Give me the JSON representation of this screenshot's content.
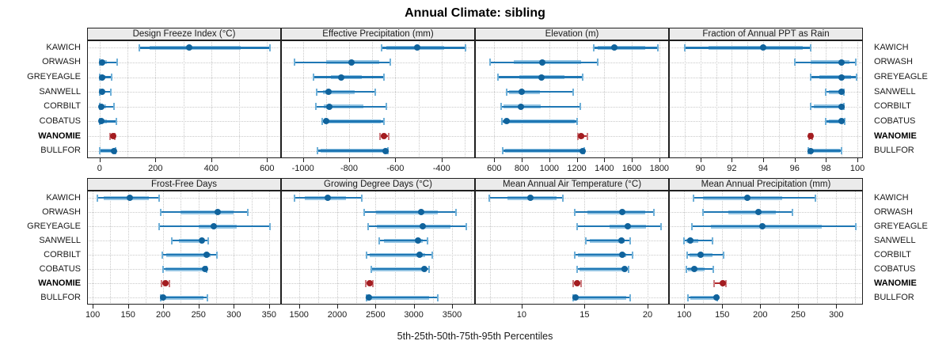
{
  "chart_data": {
    "type": "trellis-interval-dotplot",
    "title": "Annual Climate: sibling",
    "caption": "5th-25th-50th-75th-95th Percentiles",
    "percentiles": [
      5,
      25,
      50,
      75,
      95
    ],
    "sites": [
      "KAWICH",
      "ORWASH",
      "GREYEAGLE",
      "SANWELL",
      "CORBILT",
      "COBATUS",
      "WANOMIE",
      "BULLFOR"
    ],
    "highlight_site": "WANOMIE",
    "legend_position": "none",
    "grid_style": "dotted",
    "colors": {
      "line": "#1f77b4",
      "band": "#93c4e3",
      "cap": "#6fb0d8",
      "dot": "#10639c",
      "highlight_line": "#b2282c",
      "highlight_band": "#e0a0a2",
      "highlight_cap": "#cc7a7e",
      "highlight_dot": "#a31c20",
      "grid": "#c9c9c9",
      "header_bg": "#ebebeb",
      "frame": "#1f1f1f"
    },
    "panels": [
      {
        "label": "Design Freeze Index (°C)",
        "grid_row": 0,
        "grid_col": 0,
        "xlim": [
          -45,
          650
        ],
        "tick_values": [
          0,
          200,
          400,
          600
        ],
        "gridline_values": [
          0,
          100,
          200,
          300,
          400,
          500,
          600
        ],
        "series": [
          [
            143,
            180,
            320,
            505,
            610
          ],
          [
            0,
            3,
            9,
            26,
            63
          ],
          [
            0,
            2,
            9,
            20,
            42
          ],
          [
            0,
            2,
            8,
            15,
            40
          ],
          [
            0,
            2,
            6,
            22,
            52
          ],
          [
            0,
            2,
            6,
            25,
            60
          ],
          [
            38,
            44,
            48,
            52,
            55
          ],
          [
            0,
            3,
            52,
            54,
            57
          ]
        ]
      },
      {
        "label": "Effective Precipitation (mm)",
        "grid_row": 0,
        "grid_col": 1,
        "xlim": [
          -1095,
          -255
        ],
        "tick_values": [
          -1000,
          -800,
          -600,
          -400
        ],
        "gridline_values": [
          -1000,
          -900,
          -800,
          -700,
          -600,
          -500,
          -400,
          -300
        ],
        "series": [
          [
            -660,
            -640,
            -507,
            -390,
            -295
          ],
          [
            -1038,
            -900,
            -789,
            -670,
            -622
          ],
          [
            -953,
            -880,
            -833,
            -745,
            -648
          ],
          [
            -941,
            -913,
            -888,
            -777,
            -687
          ],
          [
            -943,
            -910,
            -886,
            -740,
            -638
          ],
          [
            -918,
            -906,
            -901,
            -663,
            -651
          ],
          [
            -666,
            -656,
            -648,
            -641,
            -630
          ],
          [
            -936,
            -925,
            -643,
            -639,
            -633
          ]
        ]
      },
      {
        "label": "Elevation (m)",
        "grid_row": 0,
        "grid_col": 2,
        "xlim": [
          460,
          1870
        ],
        "tick_values": [
          600,
          800,
          1000,
          1200,
          1400,
          1600,
          1800
        ],
        "gridline_values": [
          600,
          800,
          1000,
          1200,
          1400,
          1600,
          1800
        ],
        "series": [
          [
            1325,
            1350,
            1475,
            1695,
            1790
          ],
          [
            570,
            740,
            950,
            1230,
            1350
          ],
          [
            625,
            780,
            945,
            1110,
            1245
          ],
          [
            690,
            705,
            800,
            930,
            1175
          ],
          [
            650,
            668,
            795,
            940,
            1225
          ],
          [
            655,
            668,
            690,
            1185,
            1205
          ],
          [
            1208,
            1222,
            1233,
            1252,
            1276
          ],
          [
            663,
            676,
            1240,
            1248,
            1256
          ]
        ]
      },
      {
        "label": "Fraction of Annual PPT as Rain",
        "grid_row": 0,
        "grid_col": 3,
        "xlim": [
          88,
          100.35
        ],
        "tick_values": [
          90,
          92,
          94,
          96,
          98,
          100
        ],
        "gridline_values": [
          89,
          90,
          91,
          92,
          93,
          94,
          95,
          96,
          97,
          98,
          99,
          100
        ],
        "series": [
          [
            89,
            90.5,
            94,
            96.5,
            97
          ],
          [
            96,
            97,
            99,
            99.5,
            99.9
          ],
          [
            97,
            97.6,
            99,
            99.6,
            99.95
          ],
          [
            98,
            98.2,
            99,
            99.1,
            99.15
          ],
          [
            97,
            97.2,
            99,
            99.05,
            99.15
          ],
          [
            98,
            98.2,
            99,
            99.1,
            99.2
          ],
          [
            96.9,
            96.95,
            97,
            97.05,
            97.1
          ],
          [
            96.85,
            96.9,
            97,
            98.9,
            99
          ]
        ]
      },
      {
        "label": "Frost-Free Days",
        "grid_row": 1,
        "grid_col": 0,
        "xlim": [
          92,
          367
        ],
        "tick_values": [
          100,
          150,
          200,
          250,
          300,
          350
        ],
        "gridline_values": [
          100,
          125,
          150,
          175,
          200,
          225,
          250,
          275,
          300,
          325,
          350
        ],
        "series": [
          [
            107,
            116,
            153,
            180,
            194
          ],
          [
            196,
            224,
            277,
            300,
            320
          ],
          [
            194,
            250,
            272,
            304,
            351
          ],
          [
            212,
            222,
            255,
            258,
            264
          ],
          [
            199,
            204,
            261,
            267,
            276
          ],
          [
            200,
            203,
            259,
            260,
            262
          ],
          [
            197,
            200,
            203,
            206,
            209
          ],
          [
            196,
            198,
            200,
            257,
            263
          ]
        ]
      },
      {
        "label": "Growing Degree Days (°C)",
        "grid_row": 1,
        "grid_col": 1,
        "xlim": [
          1265,
          3800
        ],
        "tick_values": [
          1500,
          2000,
          2500,
          3000,
          3500
        ],
        "gridline_values": [
          1500,
          1750,
          2000,
          2250,
          2500,
          2750,
          3000,
          3250,
          3500,
          3750
        ],
        "series": [
          [
            1440,
            1580,
            1875,
            2110,
            2320
          ],
          [
            2355,
            2510,
            3100,
            3310,
            3555
          ],
          [
            2405,
            2520,
            3120,
            3480,
            3690
          ],
          [
            2545,
            2610,
            3050,
            3120,
            3180
          ],
          [
            2380,
            2420,
            3075,
            3150,
            3245
          ],
          [
            2440,
            2460,
            3140,
            3165,
            3195
          ],
          [
            2370,
            2400,
            2420,
            2445,
            2465
          ],
          [
            2385,
            2395,
            2410,
            3200,
            3310
          ]
        ]
      },
      {
        "label": "Mean Annual Air Temperature (°C)",
        "grid_row": 1,
        "grid_col": 2,
        "xlim": [
          6.3,
          21.7
        ],
        "tick_values": [
          10,
          15,
          20
        ],
        "gridline_values": [
          7.5,
          10,
          12.5,
          15,
          17.5,
          20
        ],
        "series": [
          [
            7.4,
            8.9,
            10.7,
            12.8,
            13.3
          ],
          [
            14.2,
            15.2,
            18,
            19.8,
            20.5
          ],
          [
            14.4,
            17,
            18.4,
            19.9,
            21.1
          ],
          [
            15.1,
            15.4,
            17.9,
            18.2,
            18.6
          ],
          [
            14.2,
            14.5,
            18,
            18.3,
            18.8
          ],
          [
            14.4,
            14.6,
            18.2,
            18.3,
            18.5
          ],
          [
            14.1,
            14.3,
            14.4,
            14.5,
            14.7
          ],
          [
            14.1,
            14.2,
            14.3,
            18.3,
            18.6
          ]
        ]
      },
      {
        "label": "Mean Annual Precipitation (mm)",
        "grid_row": 1,
        "grid_col": 3,
        "xlim": [
          80,
          335
        ],
        "tick_values": [
          100,
          150,
          200,
          250,
          300
        ],
        "gridline_values": [
          100,
          125,
          150,
          175,
          200,
          225,
          250,
          275,
          300,
          325
        ],
        "series": [
          [
            112,
            125,
            183,
            229,
            273
          ],
          [
            125,
            158,
            198,
            220,
            242
          ],
          [
            110,
            135,
            203,
            281,
            326
          ],
          [
            100,
            103,
            108,
            119,
            137
          ],
          [
            104,
            107,
            122,
            137,
            152
          ],
          [
            103,
            105,
            113,
            127,
            138
          ],
          [
            139,
            148,
            151,
            153,
            155
          ],
          [
            105,
            108,
            142,
            143,
            144
          ]
        ]
      }
    ]
  }
}
